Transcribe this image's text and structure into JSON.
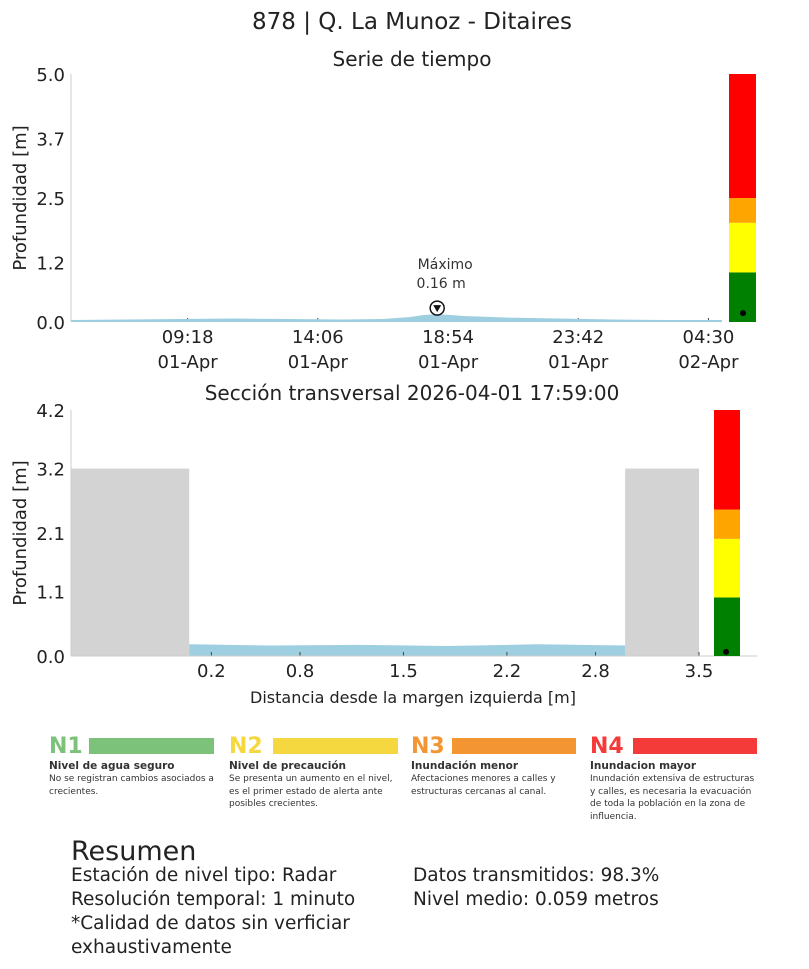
{
  "header": {
    "title": "878 | Q. La Munoz - Ditaires"
  },
  "chart_data": [
    {
      "type": "area",
      "title": "Serie de tiempo",
      "ylabel": "Profundidad [m]",
      "xlabel": "",
      "ylim": [
        0,
        5.0
      ],
      "yticks": [
        "0.0",
        "1.2",
        "2.5",
        "3.7",
        "5.0"
      ],
      "ytick_values": [
        0.0,
        1.2,
        2.5,
        3.7,
        5.0
      ],
      "xlim": [
        "2026-04-01 05:00",
        "2026-04-02 05:00"
      ],
      "xtick_values": [
        "2026-04-01 09:18",
        "2026-04-01 14:06",
        "2026-04-01 18:54",
        "2026-04-01 23:42",
        "2026-04-02 04:30"
      ],
      "xticks": [
        {
          "time": "09:18",
          "date": "01-Apr"
        },
        {
          "time": "14:06",
          "date": "01-Apr"
        },
        {
          "time": "18:54",
          "date": "01-Apr"
        },
        {
          "time": "23:42",
          "date": "01-Apr"
        },
        {
          "time": "04:30",
          "date": "02-Apr"
        }
      ],
      "series": [
        {
          "color": "#9ecfe0",
          "x": [
            "2026-04-01 05:00",
            "2026-04-01 07:00",
            "2026-04-01 09:00",
            "2026-04-01 11:00",
            "2026-04-01 13:00",
            "2026-04-01 15:00",
            "2026-04-01 16:30",
            "2026-04-01 17:30",
            "2026-04-01 18:00",
            "2026-04-01 18:30",
            "2026-04-01 19:30",
            "2026-04-01 21:00",
            "2026-04-01 23:00",
            "2026-04-02 01:00",
            "2026-04-02 03:00",
            "2026-04-02 05:00"
          ],
          "y": [
            0.04,
            0.05,
            0.06,
            0.07,
            0.06,
            0.05,
            0.06,
            0.1,
            0.14,
            0.16,
            0.12,
            0.09,
            0.07,
            0.05,
            0.04,
            0.04
          ]
        }
      ],
      "annotation": {
        "label": "Máximo",
        "value_text": "0.16 m",
        "x": "2026-04-01 18:30",
        "y": 0.16
      },
      "level_bar": {
        "segments": [
          {
            "from": 0.0,
            "to": 1.0,
            "color": "#008000"
          },
          {
            "from": 1.0,
            "to": 2.0,
            "color": "#ffff00"
          },
          {
            "from": 2.0,
            "to": 2.5,
            "color": "#ffa500"
          },
          {
            "from": 2.5,
            "to": 5.0,
            "color": "#ff0000"
          }
        ],
        "current": 0.16
      }
    },
    {
      "type": "area",
      "title": "Sección transversal 2026-04-01 17:59:00",
      "ylabel": "Profundidad [m]",
      "xlabel": "Distancia desde la margen izquierda [m]",
      "ylim": [
        0,
        4.2
      ],
      "xlim": [
        -0.75,
        3.7
      ],
      "yticks": [
        "0.0",
        "1.1",
        "2.1",
        "3.2",
        "4.2"
      ],
      "ytick_values": [
        0.0,
        1.1,
        2.1,
        3.2,
        4.2
      ],
      "xticks": [
        "0.2",
        "0.8",
        "1.5",
        "2.2",
        "2.8",
        "3.5"
      ],
      "xtick_values": [
        0.2,
        0.8,
        1.5,
        2.2,
        2.8,
        3.5
      ],
      "banks": [
        {
          "x0": -0.75,
          "x1": 0.05,
          "height": 3.2,
          "color": "#d3d3d3"
        },
        {
          "x0": 3.0,
          "x1": 3.5,
          "height": 3.2,
          "color": "#d3d3d3"
        }
      ],
      "water": {
        "color": "#9ecfe0",
        "x": [
          0.05,
          0.6,
          1.2,
          1.8,
          2.4,
          3.0
        ],
        "depth": [
          0.2,
          0.18,
          0.19,
          0.17,
          0.2,
          0.18
        ]
      },
      "level_bar": {
        "segments": [
          {
            "from": 0.0,
            "to": 1.0,
            "color": "#008000"
          },
          {
            "from": 1.0,
            "to": 2.0,
            "color": "#ffff00"
          },
          {
            "from": 2.0,
            "to": 2.5,
            "color": "#ffa500"
          },
          {
            "from": 2.5,
            "to": 4.2,
            "color": "#ff0000"
          }
        ],
        "current": 0.19
      }
    }
  ],
  "levels": [
    {
      "tag": "N1",
      "color": "#7dc27a",
      "name": "Nivel de agua seguro",
      "desc": "No se registran cambios asociados a crecientes."
    },
    {
      "tag": "N2",
      "color": "#f5d840",
      "name": "Nivel de precaución",
      "desc": "Se presenta un aumento en el nivel, es el primer estado de alerta ante posibles crecientes."
    },
    {
      "tag": "N3",
      "color": "#f39532",
      "name": "Inundación menor",
      "desc": "Afectaciones menores a calles y estructuras cercanas al canal."
    },
    {
      "tag": "N4",
      "color": "#f53a3a",
      "name": "Inundacion mayor",
      "desc": "Inundación extensiva de estructuras y calles, es necesaria la evacuación de toda la población en la zona de influencia."
    }
  ],
  "summary": {
    "title": "Resumen",
    "station": "Estación de nivel tipo: Radar",
    "resolution": "Resolución temporal: 1 minuto",
    "quality": "*Calidad de datos sin verficiar exhaustivamente",
    "transmitted": "Datos transmitidos: 98.3%",
    "mean": "Nivel medio: 0.059 metros"
  }
}
